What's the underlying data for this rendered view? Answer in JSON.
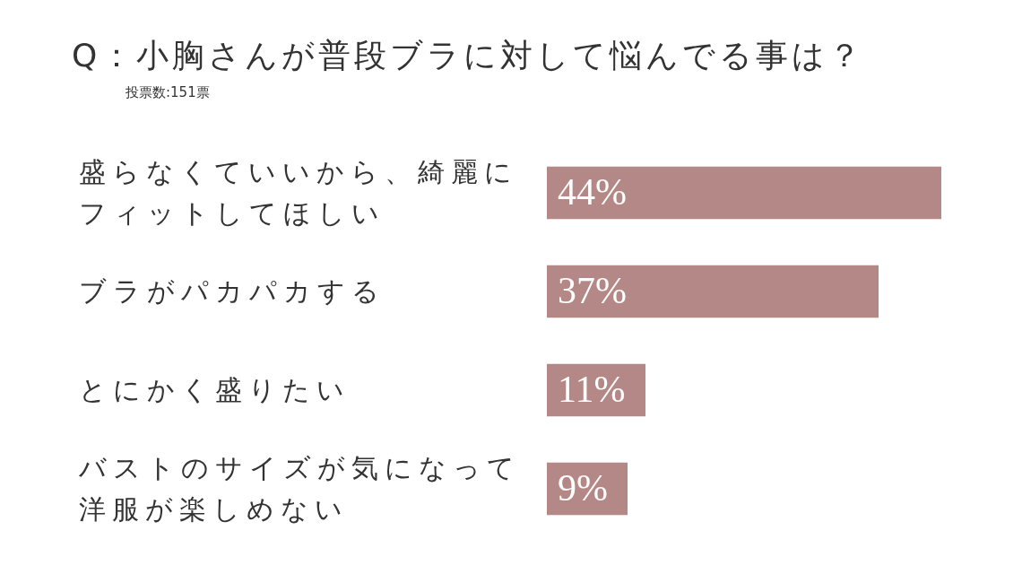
{
  "chart_data": {
    "type": "bar",
    "orientation": "horizontal",
    "title": "Q：小胸さんが普段ブラに対して悩んでる事は？",
    "subtitle": "投票数:151票",
    "categories": [
      "盛らなくていいから、綺麗にフィットしてほしい",
      "ブラがパカパカする",
      "とにかく盛りたい",
      "バストのサイズが気になって洋服が楽しめない"
    ],
    "values": [
      44,
      37,
      11,
      9
    ],
    "value_labels": [
      "44%",
      "37%",
      "11%",
      "9%"
    ],
    "color": "#b48886"
  }
}
